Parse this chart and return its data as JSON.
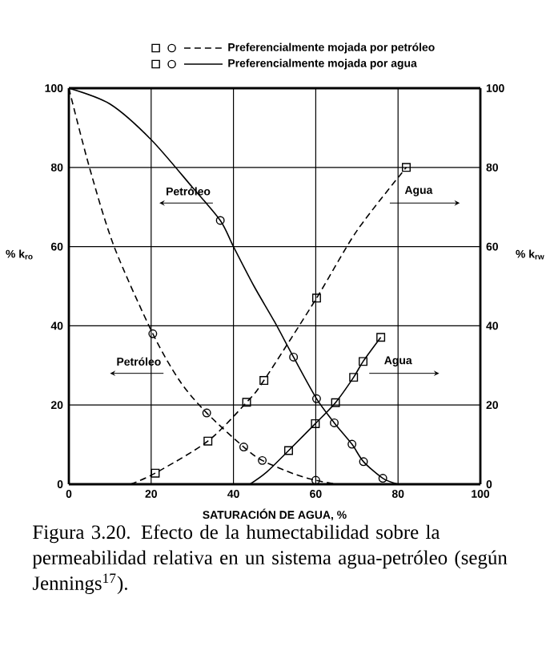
{
  "chart_data": {
    "type": "line",
    "xlabel": "SATURACIÓN DE AGUA, %",
    "ylabel": "% k$_{ro}$",
    "y2label": "% k$_{rw}$",
    "xlim": [
      0,
      100
    ],
    "xticks": [
      0,
      20,
      40,
      60,
      80,
      100
    ],
    "ylim": [
      0,
      100
    ],
    "yticks": [
      0,
      20,
      40,
      60,
      80,
      100
    ],
    "y2lim": [
      0,
      100
    ],
    "y2ticks": [
      0,
      20,
      40,
      60,
      80,
      100
    ],
    "grid": true,
    "legend": "top",
    "series": [
      {
        "name": "Preferencialmente mojada por petróleo",
        "line_style": "dashed",
        "color": "#000000",
        "x": [
          0,
          5,
          11,
          20.4,
          27,
          33.5,
          42.5,
          47,
          55,
          60,
          65
        ],
        "values": [
          100,
          80,
          60,
          38,
          26,
          18,
          9.4,
          6,
          2.5,
          1,
          0
        ]
      },
      {
        "type": "scatter",
        "marker": "circle",
        "color": "#000000",
        "x": [
          20.4,
          33.5,
          42.5,
          47,
          60
        ],
        "values": [
          38,
          18,
          9.4,
          6,
          1
        ]
      },
      {
        "line_style": "dashed",
        "axis": "y2",
        "color": "#000000",
        "x": [
          15,
          21,
          33.8,
          43.2,
          47.4,
          60.2,
          70,
          82
        ],
        "values": [
          0,
          2.8,
          10.9,
          20.7,
          26.2,
          47,
          64,
          80
        ]
      },
      {
        "type": "scatter",
        "marker": "square",
        "axis": "y2",
        "color": "#000000",
        "x": [
          21,
          33.8,
          43.2,
          47.4,
          60.2,
          82
        ],
        "values": [
          2.8,
          10.9,
          20.7,
          26.2,
          47,
          80
        ]
      },
      {
        "name": "Preferencialmente mojada por agua",
        "line_style": "solid",
        "color": "#000000",
        "x": [
          0,
          10,
          20,
          30,
          36.8,
          40,
          45,
          50,
          54.6,
          60.2,
          64.5,
          68.8,
          71.6,
          76.3,
          80
        ],
        "values": [
          100,
          96,
          87,
          75,
          66.6,
          60,
          50,
          41,
          32.1,
          21.6,
          15.5,
          10.1,
          5.7,
          1.5,
          0
        ]
      },
      {
        "type": "scatter",
        "marker": "circle",
        "color": "#000000",
        "x": [
          36.8,
          54.6,
          60.2,
          64.5,
          68.8,
          71.6,
          76.3
        ],
        "values": [
          66.6,
          32.1,
          21.6,
          15.5,
          10.1,
          5.7,
          1.5
        ]
      },
      {
        "line_style": "solid",
        "axis": "y2",
        "color": "#000000",
        "x": [
          44,
          48,
          53.4,
          59.9,
          64.8,
          69.2,
          71.5,
          75.8
        ],
        "values": [
          0,
          3,
          8.5,
          15.3,
          20.6,
          27,
          31,
          37.1
        ]
      },
      {
        "type": "scatter",
        "marker": "square",
        "axis": "y2",
        "color": "#000000",
        "x": [
          53.4,
          59.9,
          64.8,
          69.2,
          71.5,
          75.8
        ],
        "values": [
          8.5,
          15.3,
          20.6,
          27,
          31,
          37.1
        ]
      }
    ],
    "annotations": [
      "Petróleo",
      "Petróleo",
      "Agua",
      "Agua",
      "Figura 3.20.  Efecto de la humectabilidad sobre la permeabilidad relativa en un sistema agua-petróleo (según Jennings$^{17}$)."
    ]
  }
}
